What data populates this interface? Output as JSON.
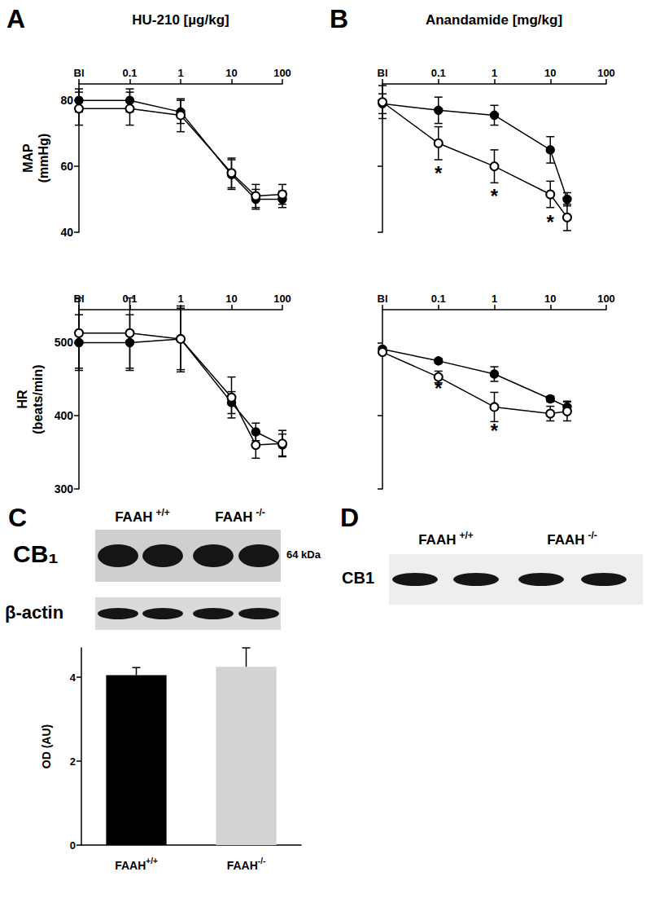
{
  "chart_data": [
    {
      "type": "line",
      "panel": "A",
      "title": "HU-210 [µg/kg]",
      "ylabel": "MAP\n(mmHg)",
      "log": "x",
      "x": [
        0.01,
        0.1,
        1,
        10,
        30,
        100
      ],
      "xlim": [
        0.01,
        100
      ],
      "xticks": [
        {
          "value": 0.01,
          "label": "Bl"
        },
        0.1,
        1,
        10,
        100
      ],
      "ylim": [
        40,
        85
      ],
      "yticks": [
        40,
        60,
        80
      ],
      "series": [
        {
          "color": "#000000",
          "marker": "circle",
          "values": [
            80,
            80,
            76.5,
            57.5,
            50,
            50
          ],
          "errors": [
            3.5,
            3.5,
            3.5,
            4.5,
            3,
            2.5
          ]
        },
        {
          "color": "#000000",
          "marker": "emptyCircle",
          "values": [
            77.5,
            77.5,
            75.5,
            58,
            51,
            51.5
          ],
          "errors": [
            5,
            5,
            5,
            4.5,
            3.5,
            3
          ]
        }
      ]
    },
    {
      "type": "line",
      "ylabel": "HR\n(beats/min)",
      "log": "x",
      "x": [
        0.01,
        0.1,
        1,
        10,
        30,
        100
      ],
      "xlim": [
        0.01,
        100
      ],
      "xticks": [
        {
          "value": 0.01,
          "label": "Bl"
        },
        0.1,
        1,
        10,
        100
      ],
      "ylim": [
        300,
        545
      ],
      "yticks": [
        300,
        400,
        500
      ],
      "series": [
        {
          "color": "#000000",
          "marker": "circle",
          "values": [
            500,
            500,
            505,
            418,
            378,
            360
          ],
          "errors": [
            38,
            38,
            42,
            15,
            12,
            15
          ]
        },
        {
          "color": "#000000",
          "marker": "emptyCircle",
          "values": [
            513,
            513,
            505,
            425,
            360,
            362
          ],
          "errors": [
            48,
            48,
            45,
            28,
            18,
            18
          ]
        }
      ]
    },
    {
      "type": "line",
      "panel": "B",
      "title": "Anandamide [mg/kg]",
      "log": "x",
      "tick_labels": "x",
      "x": [
        0.01,
        0.1,
        1,
        10,
        20
      ],
      "xlim": [
        0.01,
        100
      ],
      "xticks": [
        {
          "value": 0.01,
          "label": "Bl"
        },
        0.1,
        1,
        10,
        100
      ],
      "ylim": [
        40,
        85
      ],
      "yticks": [
        40,
        60,
        80
      ],
      "series": [
        {
          "color": "#000000",
          "marker": "circle",
          "values": [
            79,
            77,
            75.5,
            65,
            50
          ],
          "errors": [
            3,
            4,
            3,
            4,
            2
          ]
        },
        {
          "color": "#000000",
          "marker": "emptyCircle",
          "values": [
            79.5,
            67,
            60,
            51.5,
            44.5
          ],
          "errors": [
            5,
            5,
            5,
            4,
            4
          ]
        }
      ],
      "annotations": [
        {
          "x": 0.1,
          "y": 58,
          "text": "*"
        },
        {
          "x": 1,
          "y": 51,
          "text": "*"
        },
        {
          "x": 10,
          "y": 43,
          "text": "*"
        }
      ]
    },
    {
      "type": "line",
      "log": "x",
      "tick_labels": "x",
      "x": [
        0.01,
        0.1,
        1,
        10,
        20
      ],
      "xlim": [
        0.01,
        100
      ],
      "xticks": [
        {
          "value": 0.01,
          "label": "Bl"
        },
        0.1,
        1,
        10,
        100
      ],
      "ylim": [
        300,
        545
      ],
      "yticks": [
        300,
        400,
        500
      ],
      "series": [
        {
          "color": "#000000",
          "marker": "circle",
          "values": [
            491,
            475,
            457,
            423,
            412
          ],
          "errors": [
            3,
            3,
            10,
            4,
            8
          ]
        },
        {
          "color": "#000000",
          "marker": "emptyCircle",
          "values": [
            487,
            453,
            412,
            403,
            406
          ],
          "errors": [
            3,
            8,
            20,
            10,
            13
          ]
        }
      ],
      "annotations": [
        {
          "x": 0.1,
          "y": 437,
          "text": "*"
        },
        {
          "x": 1,
          "y": 380,
          "text": "*"
        }
      ]
    },
    {
      "type": "bar",
      "ylabel": "OD (AU)",
      "categories": [
        "FAAH+/+",
        "FAAH-/-"
      ],
      "values": [
        4.05,
        4.25
      ],
      "errors": [
        0.18,
        0.45
      ],
      "colors": [
        "#000000",
        "#d3d3d3"
      ],
      "ylim": [
        0,
        4.7
      ],
      "yticks": [
        0,
        2,
        4
      ]
    }
  ],
  "blots": [
    {
      "panel": "C",
      "lanes": [
        "FAAH +/+",
        "FAAH -/-"
      ],
      "rows": [
        {
          "label": "CB₁",
          "size": "64 kDa"
        },
        {
          "label": "β-actin"
        }
      ]
    },
    {
      "panel": "D",
      "lanes": [
        "FAAH +/+",
        "FAAH -/-"
      ],
      "rows": [
        {
          "label": "CB1"
        }
      ]
    }
  ]
}
